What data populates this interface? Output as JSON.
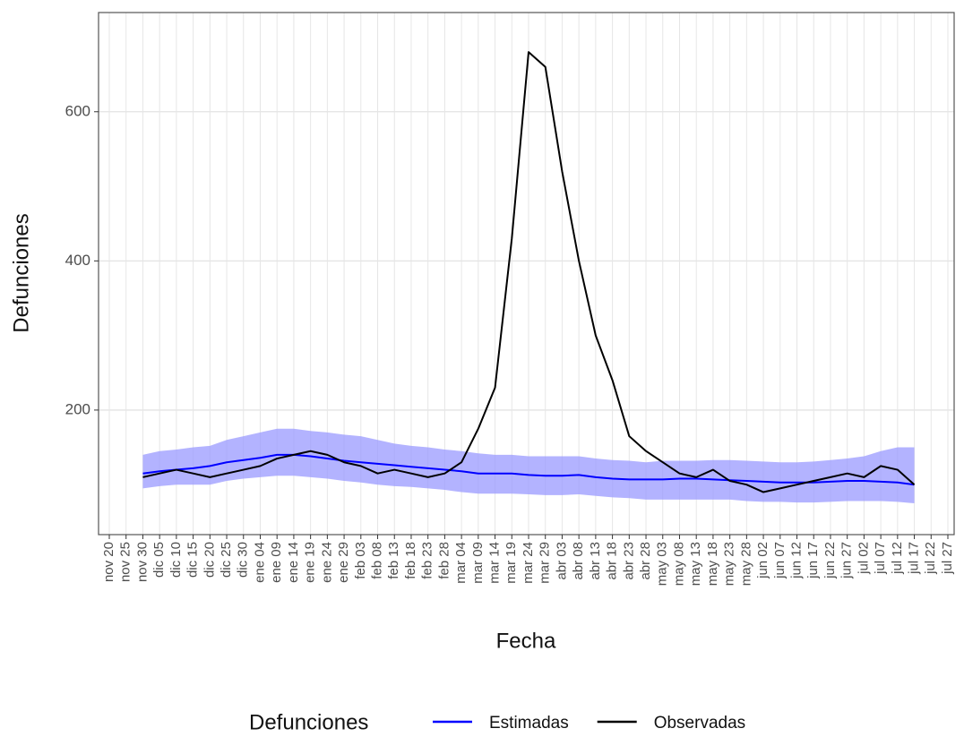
{
  "chart_data": {
    "type": "line",
    "x_label": "Fecha",
    "y_label": "Defunciones",
    "legend_title": "Defunciones",
    "legend_position": "bottom",
    "grid": true,
    "x": [
      "nov 20",
      "nov 25",
      "nov 30",
      "dic 05",
      "dic 10",
      "dic 15",
      "dic 20",
      "dic 25",
      "dic 30",
      "ene 04",
      "ene 09",
      "ene 14",
      "ene 19",
      "ene 24",
      "ene 29",
      "feb 03",
      "feb 08",
      "feb 13",
      "feb 18",
      "feb 23",
      "feb 28",
      "mar 04",
      "mar 09",
      "mar 14",
      "mar 19",
      "mar 24",
      "mar 29",
      "abr 03",
      "abr 08",
      "abr 13",
      "abr 18",
      "abr 23",
      "abr 28",
      "may 03",
      "may 08",
      "may 13",
      "may 18",
      "may 23",
      "may 28",
      "jun 02",
      "jun 07",
      "jun 12",
      "jun 17",
      "jun 22",
      "jun 27",
      "jul 02",
      "jul 07",
      "jul 12",
      "jul 17",
      "jul 22",
      "jul 27"
    ],
    "ylim": [
      33,
      733
    ],
    "yticks": [
      200,
      400,
      600
    ],
    "series": [
      {
        "name": "Estimadas",
        "color": "#0000ff",
        "band_color": "#9999ff",
        "values": [
          null,
          null,
          115,
          118,
          120,
          122,
          125,
          130,
          133,
          136,
          140,
          140,
          138,
          135,
          132,
          130,
          128,
          126,
          124,
          122,
          120,
          118,
          115,
          115,
          115,
          113,
          112,
          112,
          113,
          110,
          108,
          107,
          107,
          107,
          108,
          108,
          107,
          106,
          105,
          104,
          103,
          103,
          103,
          104,
          105,
          105,
          104,
          103,
          100,
          null,
          null
        ],
        "lower": [
          null,
          null,
          95,
          98,
          100,
          100,
          100,
          105,
          108,
          110,
          112,
          112,
          110,
          108,
          105,
          103,
          100,
          98,
          97,
          95,
          93,
          90,
          88,
          88,
          88,
          87,
          86,
          86,
          87,
          85,
          83,
          82,
          80,
          80,
          80,
          80,
          80,
          80,
          78,
          77,
          77,
          76,
          76,
          77,
          78,
          78,
          78,
          77,
          75,
          null,
          null
        ],
        "upper": [
          null,
          null,
          140,
          145,
          147,
          150,
          152,
          160,
          165,
          170,
          175,
          175,
          172,
          170,
          167,
          165,
          160,
          155,
          152,
          150,
          147,
          145,
          142,
          140,
          140,
          138,
          138,
          138,
          138,
          135,
          133,
          132,
          130,
          132,
          132,
          132,
          133,
          133,
          132,
          131,
          130,
          130,
          131,
          133,
          135,
          138,
          145,
          150,
          150,
          null,
          null
        ]
      },
      {
        "name": "Observadas",
        "color": "#000000",
        "values": [
          null,
          null,
          110,
          115,
          120,
          115,
          110,
          115,
          120,
          125,
          135,
          140,
          145,
          140,
          130,
          125,
          115,
          120,
          115,
          110,
          115,
          130,
          175,
          230,
          430,
          680,
          660,
          520,
          400,
          300,
          240,
          165,
          145,
          130,
          115,
          110,
          120,
          105,
          100,
          90,
          95,
          100,
          105,
          110,
          115,
          110,
          125,
          120,
          100,
          null,
          null
        ]
      }
    ]
  }
}
